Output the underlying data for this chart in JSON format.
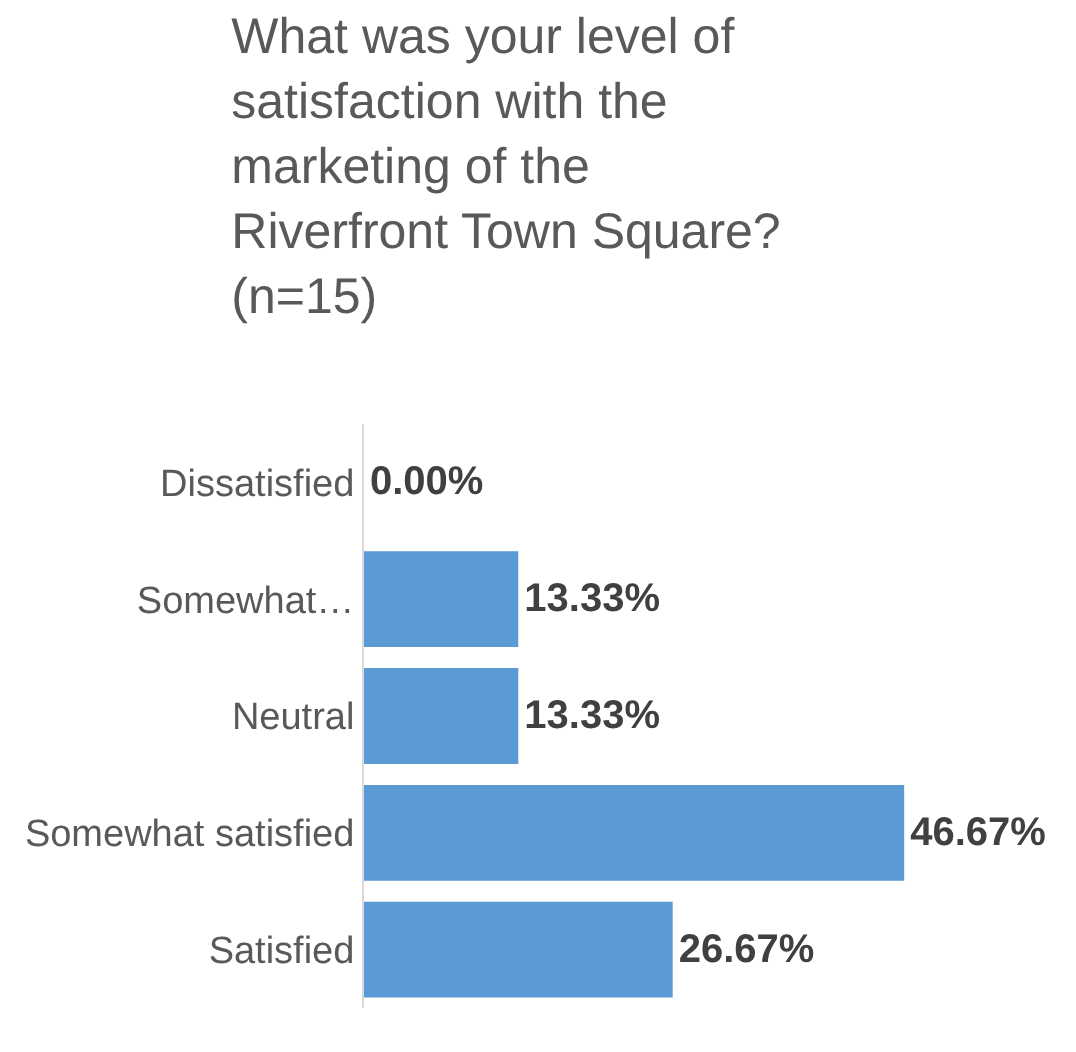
{
  "chart_data": {
    "type": "bar",
    "orientation": "horizontal",
    "title": "What was your level of satisfaction with the marketing of the Riverfront Town Square? (n=15)",
    "categories": [
      "Dissatisfied",
      "Somewhat…",
      "Neutral",
      "Somewhat satisfied",
      "Satisfied"
    ],
    "values": [
      0,
      13.33,
      13.33,
      46.67,
      26.67
    ],
    "value_labels": [
      "0.00%",
      "13.33%",
      "13.33%",
      "46.67%",
      "26.67%"
    ],
    "color": "#5b9bd5"
  }
}
